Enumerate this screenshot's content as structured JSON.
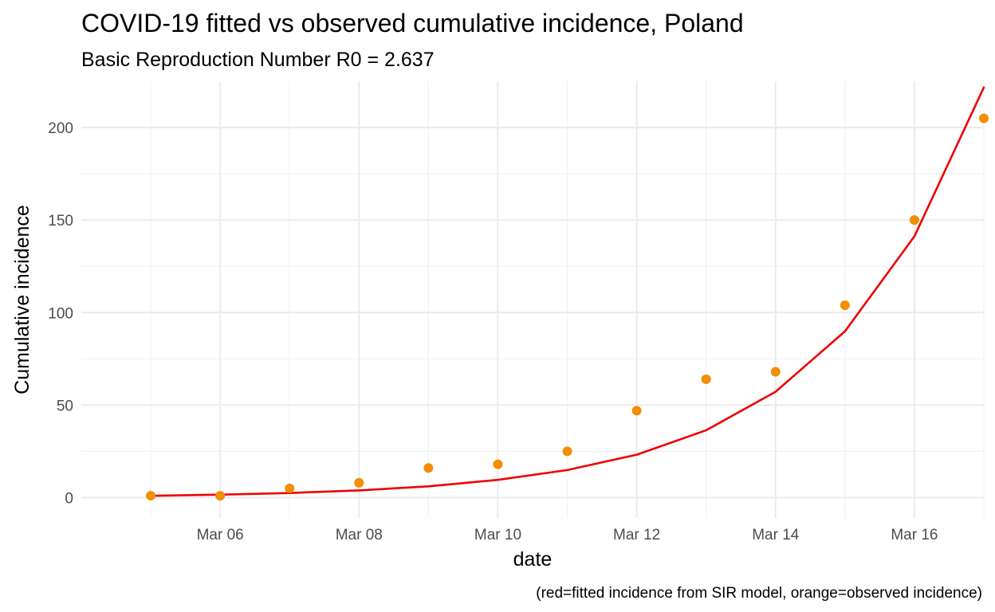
{
  "chart_data": {
    "type": "line",
    "title": "COVID-19 fitted vs observed cumulative incidence, Poland",
    "subtitle": "Basic Reproduction Number R0 = 2.637",
    "xlabel": "date",
    "ylabel": "Cumulative incidence",
    "caption": "(red=fitted incidence from SIR model, orange=observed incidence)",
    "x": [
      "2020-03-05",
      "2020-03-06",
      "2020-03-07",
      "2020-03-08",
      "2020-03-09",
      "2020-03-10",
      "2020-03-11",
      "2020-03-12",
      "2020-03-13",
      "2020-03-14",
      "2020-03-15",
      "2020-03-16",
      "2020-03-17"
    ],
    "x_ticks": [
      "2020-03-06",
      "2020-03-08",
      "2020-03-10",
      "2020-03-12",
      "2020-03-14",
      "2020-03-16"
    ],
    "x_tick_labels": [
      "Mar 06",
      "Mar 08",
      "Mar 10",
      "Mar 12",
      "Mar 14",
      "Mar 16"
    ],
    "xlim": [
      "2020-03-04",
      "2020-03-17"
    ],
    "y_ticks": [
      0,
      50,
      100,
      150,
      200
    ],
    "y_tick_labels": [
      "0",
      "50",
      "100",
      "150",
      "200"
    ],
    "ylim": [
      -11,
      225
    ],
    "grid": true,
    "series": [
      {
        "mark": "line",
        "color": "#ee0000",
        "values": [
          1,
          1.6,
          2.5,
          3.9,
          6.1,
          9.6,
          14.9,
          23.2,
          36.4,
          57.2,
          89.9,
          141.2,
          221.7
        ]
      },
      {
        "mark": "points",
        "color": "#f28e00",
        "values": [
          1,
          1,
          5,
          8,
          16,
          18,
          25,
          47,
          64,
          68,
          104,
          150,
          205
        ]
      }
    ]
  }
}
